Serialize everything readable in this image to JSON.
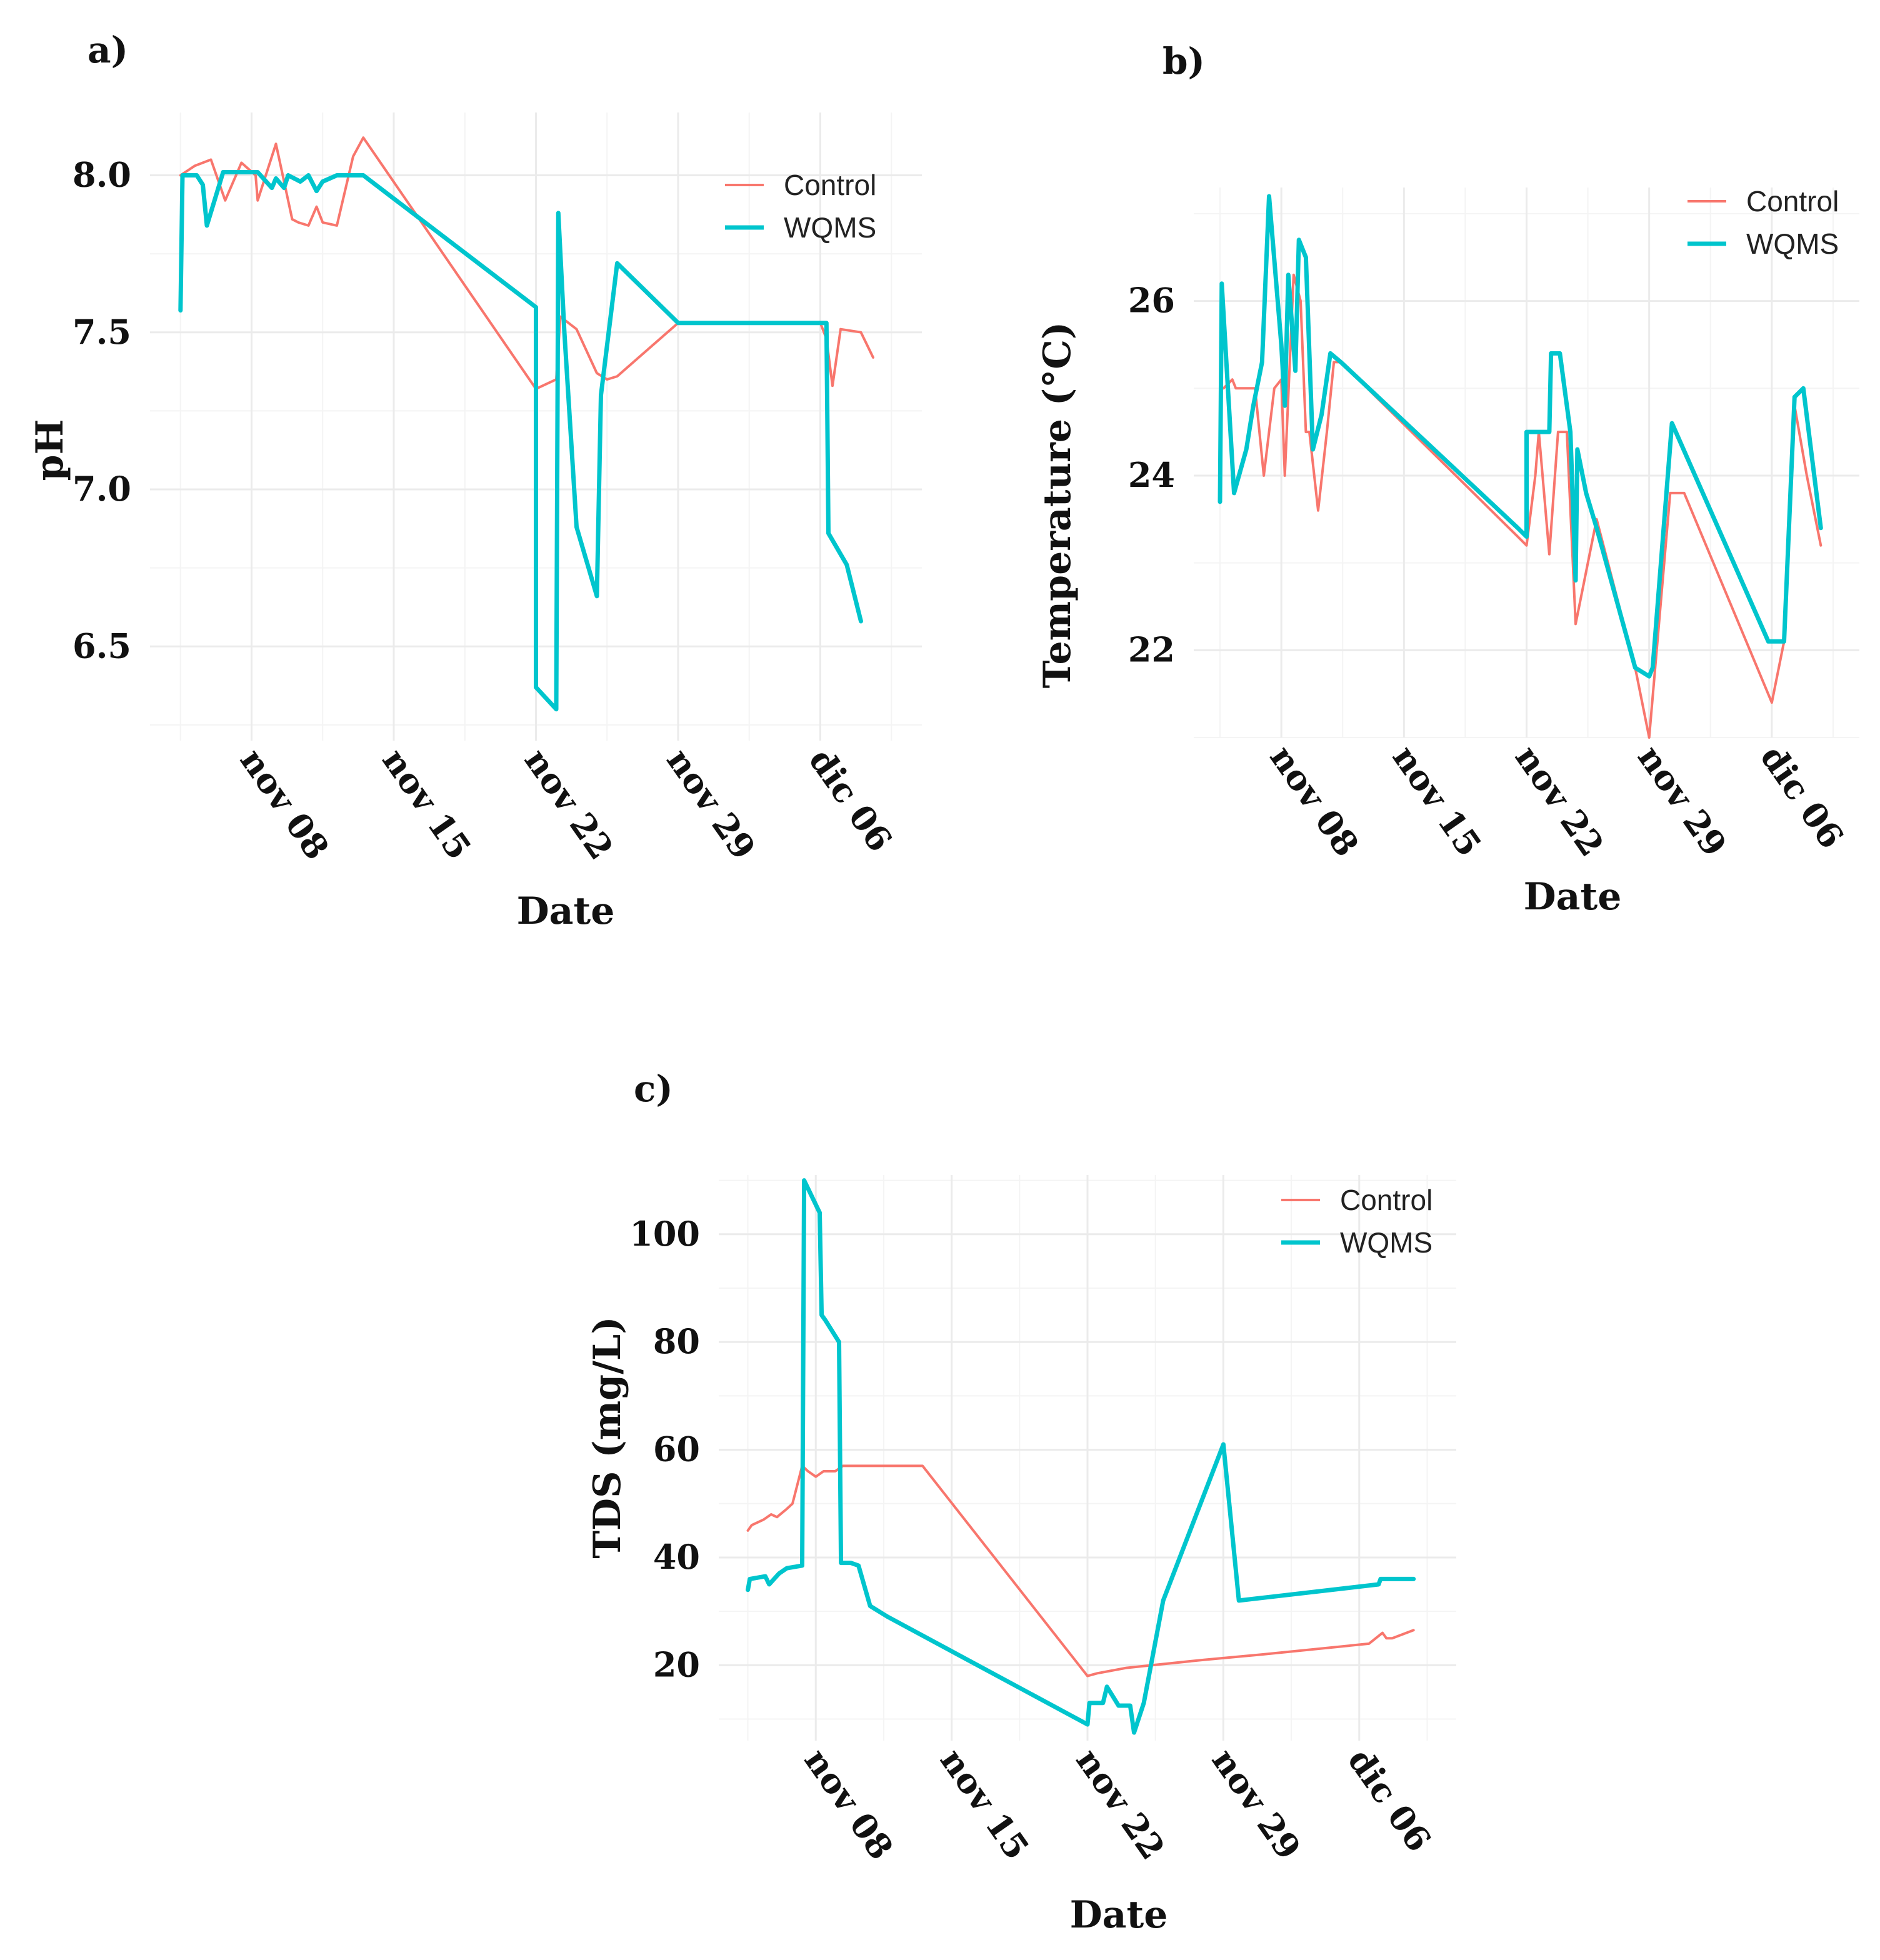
{
  "colors": {
    "control": "#F8766D",
    "wqms": "#00C5CD",
    "grid": "#ebebeb"
  },
  "chart_data": [
    {
      "panel": "a)",
      "type": "line",
      "title": "",
      "xlabel": "Date",
      "ylabel": "pH",
      "xlim": [
        0,
        38
      ],
      "ylim": [
        6.2,
        8.2
      ],
      "xticks": [
        5,
        12,
        19,
        26,
        33
      ],
      "xtick_labels": [
        "nov 08",
        "nov 15",
        "nov 22",
        "nov 29",
        "dic 06"
      ],
      "yticks": [
        6.5,
        7.0,
        7.5,
        8.0
      ],
      "ytick_labels": [
        "6.5",
        "7.0",
        "7.5",
        "8.0"
      ],
      "legend": [
        "Control",
        "WQMS"
      ],
      "legend_position": "top-right",
      "series": [
        {
          "name": "Control",
          "x": [
            1.5,
            2.2,
            3.0,
            3.7,
            4.5,
            5.2,
            5.3,
            6.2,
            6.5,
            7.0,
            7.3,
            7.8,
            8.2,
            8.5,
            9.2,
            10.0,
            10.5,
            19.0,
            20.0,
            20.2,
            21.0,
            22.0,
            22.5,
            23.0,
            26.0,
            30.0,
            33.0,
            33.3,
            33.6,
            34.0,
            35.0,
            35.6
          ],
          "y": [
            8.0,
            8.03,
            8.05,
            7.92,
            8.04,
            8.0,
            7.92,
            8.1,
            8.01,
            7.86,
            7.85,
            7.84,
            7.9,
            7.85,
            7.84,
            8.06,
            8.12,
            7.32,
            7.35,
            7.55,
            7.51,
            7.37,
            7.35,
            7.36,
            7.53,
            7.53,
            7.53,
            7.48,
            7.33,
            7.51,
            7.5,
            7.42
          ]
        },
        {
          "name": "WQMS",
          "x": [
            1.5,
            1.6,
            2.3,
            2.6,
            2.8,
            3.6,
            4.5,
            5.3,
            6.0,
            6.2,
            6.6,
            6.8,
            7.4,
            7.8,
            8.2,
            8.5,
            9.2,
            9.6,
            10.5,
            19.0,
            19.0,
            20.0,
            20.1,
            20.4,
            21.0,
            22.0,
            22.2,
            23.0,
            26.0,
            33.3,
            33.4,
            34.3,
            35.0
          ],
          "y": [
            7.57,
            8.0,
            8.0,
            7.97,
            7.84,
            8.01,
            8.01,
            8.01,
            7.96,
            7.99,
            7.96,
            8.0,
            7.98,
            8.0,
            7.95,
            7.98,
            8.0,
            8.0,
            8.0,
            7.58,
            6.37,
            6.3,
            7.88,
            7.5,
            6.88,
            6.66,
            7.3,
            7.72,
            7.53,
            7.53,
            6.86,
            6.76,
            6.58
          ]
        }
      ]
    },
    {
      "panel": "b)",
      "type": "line",
      "title": "",
      "xlabel": "Date",
      "ylabel": "Temperature (°C)",
      "xlim": [
        0,
        38
      ],
      "ylim": [
        21,
        27.3
      ],
      "xticks": [
        5,
        12,
        19,
        26,
        33
      ],
      "xtick_labels": [
        "nov 08",
        "nov 15",
        "nov 22",
        "nov 29",
        "dic 06"
      ],
      "yticks": [
        22,
        24,
        26
      ],
      "ytick_labels": [
        "22",
        "24",
        "26"
      ],
      "legend": [
        "Control",
        "WQMS"
      ],
      "legend_position": "top-right",
      "series": [
        {
          "name": "Control",
          "x": [
            1.5,
            1.7,
            2.2,
            2.4,
            3.5,
            4.0,
            4.6,
            5.0,
            5.2,
            5.7,
            6.1,
            6.4,
            6.6,
            7.1,
            7.6,
            8.0,
            8.4,
            18.5,
            19.0,
            19.5,
            19.7,
            20.3,
            20.8,
            21.1,
            21.3,
            21.8,
            23.0,
            25.2,
            26.0,
            27.2,
            28.0,
            33.0,
            33.7,
            34.3,
            35.0,
            35.8
          ],
          "y": [
            25.0,
            25.0,
            25.1,
            25.0,
            25.0,
            24.0,
            25.0,
            25.1,
            24.0,
            26.3,
            26.0,
            24.5,
            24.5,
            23.6,
            24.5,
            25.3,
            25.3,
            23.3,
            23.2,
            24.0,
            24.5,
            23.1,
            24.5,
            24.5,
            24.5,
            22.3,
            23.5,
            21.8,
            21.0,
            23.8,
            23.8,
            21.4,
            22.1,
            24.8,
            24.0,
            23.2
          ]
        },
        {
          "name": "WQMS",
          "x": [
            1.5,
            1.6,
            2.3,
            3.0,
            3.4,
            3.9,
            4.3,
            5.0,
            5.2,
            5.4,
            5.8,
            6.0,
            6.4,
            6.8,
            7.3,
            7.8,
            8.4,
            18.5,
            19.0,
            19.0,
            19.5,
            20.3,
            20.4,
            20.9,
            21.5,
            21.8,
            21.9,
            22.4,
            23.0,
            25.2,
            26.0,
            26.2,
            27.3,
            32.8,
            33.7,
            34.3,
            34.8,
            35.8
          ],
          "y": [
            23.7,
            26.2,
            23.8,
            24.3,
            24.8,
            25.3,
            27.2,
            25.5,
            24.8,
            26.3,
            25.2,
            26.7,
            26.5,
            24.3,
            24.7,
            25.4,
            25.3,
            23.4,
            23.3,
            24.5,
            24.5,
            24.5,
            25.4,
            25.4,
            24.5,
            22.8,
            24.3,
            23.8,
            23.4,
            21.8,
            21.7,
            21.8,
            24.6,
            22.1,
            22.1,
            24.9,
            25.0,
            23.4
          ]
        }
      ]
    },
    {
      "panel": "c)",
      "type": "line",
      "title": "",
      "xlabel": "Date",
      "ylabel": "TDS (mg/L)",
      "xlim": [
        0,
        38
      ],
      "ylim": [
        6,
        111
      ],
      "xticks": [
        5,
        12,
        19,
        26,
        33
      ],
      "xtick_labels": [
        "nov 08",
        "nov 15",
        "nov 22",
        "nov 29",
        "dic 06"
      ],
      "yticks": [
        20,
        40,
        60,
        80,
        100
      ],
      "ytick_labels": [
        "20",
        "40",
        "60",
        "80",
        "100"
      ],
      "legend": [
        "Control",
        "WQMS"
      ],
      "legend_position": "top-right",
      "series": [
        {
          "name": "Control",
          "x": [
            1.5,
            1.7,
            2.3,
            2.7,
            3.0,
            3.5,
            3.8,
            4.3,
            4.6,
            5.0,
            5.4,
            6.0,
            6.4,
            6.8,
            7.2,
            8.0,
            8.7,
            10.5,
            19.0,
            19.5,
            21.0,
            25.0,
            28.0,
            33.5,
            34.2,
            34.4,
            34.7,
            35.8
          ],
          "y": [
            45.0,
            46.0,
            47.0,
            48.0,
            47.5,
            49.0,
            50.0,
            57.0,
            56.0,
            55.0,
            56.0,
            56.0,
            57.0,
            57.0,
            57.0,
            57.0,
            57.0,
            57.0,
            18.0,
            18.5,
            19.5,
            21.0,
            22.0,
            24.0,
            26.0,
            25.0,
            25.0,
            26.5
          ]
        },
        {
          "name": "WQMS",
          "x": [
            1.5,
            1.6,
            2.4,
            2.6,
            3.1,
            3.5,
            4.3,
            4.4,
            5.2,
            5.3,
            5.5,
            6.2,
            6.3,
            6.8,
            7.2,
            7.8,
            8.7,
            19.0,
            19.1,
            19.8,
            20.0,
            20.6,
            21.2,
            21.4,
            21.9,
            22.9,
            26.0,
            26.8,
            34.0,
            34.1,
            35.8
          ],
          "y": [
            34.0,
            36.0,
            36.5,
            35.0,
            37.0,
            38.0,
            38.5,
            110.0,
            104.0,
            85.0,
            84.0,
            80.0,
            39.0,
            39.0,
            38.5,
            31.0,
            29.0,
            9.0,
            13.0,
            13.0,
            16.0,
            12.5,
            12.5,
            7.5,
            13.0,
            32.0,
            61.0,
            32.0,
            35.0,
            36.0,
            36.0
          ]
        }
      ]
    }
  ]
}
